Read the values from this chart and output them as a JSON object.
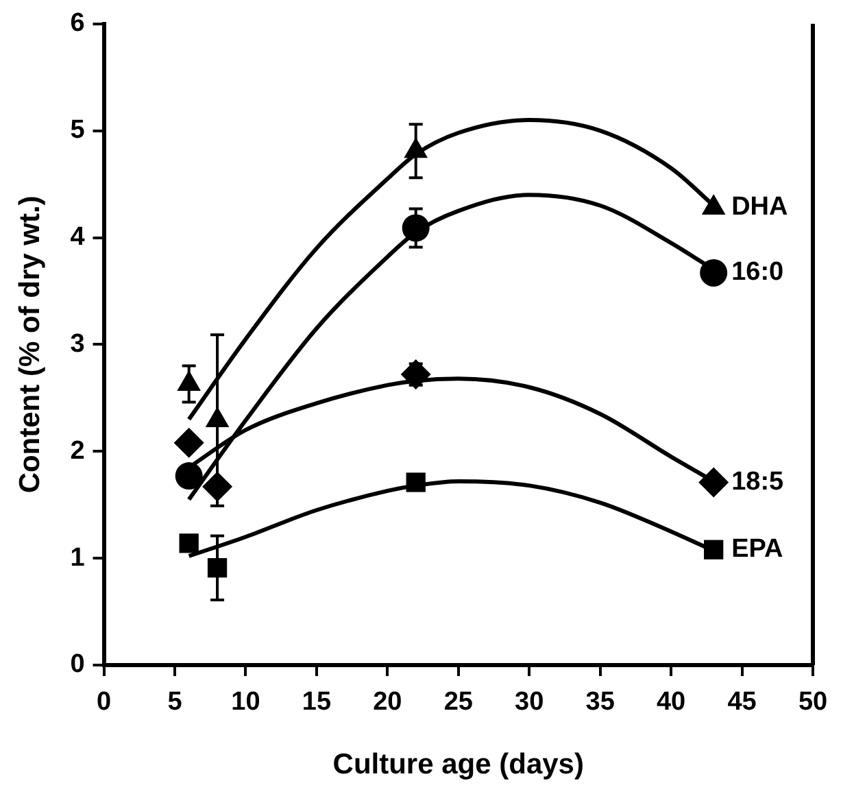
{
  "chart_data": {
    "type": "scatter",
    "xlabel": "Culture age (days)",
    "ylabel": "Content (% of dry wt.)",
    "xlim": [
      0,
      50
    ],
    "xticks": [
      0,
      5,
      10,
      15,
      20,
      25,
      30,
      35,
      40,
      45,
      50
    ],
    "ylim": [
      0,
      6
    ],
    "yticks": [
      0,
      1,
      2,
      3,
      4,
      5,
      6
    ],
    "grid": false,
    "legend": false,
    "series": [
      {
        "name": "DHA",
        "color": "#000000",
        "marker": "triangle",
        "x": [
          6,
          8,
          22,
          43
        ],
        "values": [
          2.63,
          2.29,
          4.81,
          4.28
        ],
        "errors": [
          0.17,
          0.8,
          0.25,
          null
        ]
      },
      {
        "name": "16:0",
        "color": "#000000",
        "marker": "circle",
        "x": [
          6,
          22,
          43
        ],
        "values": [
          1.77,
          4.09,
          3.67
        ],
        "errors": [
          null,
          0.18,
          null
        ]
      },
      {
        "name": "18:5",
        "color": "#000000",
        "marker": "diamond",
        "x": [
          6,
          8,
          22,
          43
        ],
        "values": [
          2.08,
          1.67,
          2.72,
          1.71
        ],
        "errors": [
          null,
          null,
          0.1,
          null
        ]
      },
      {
        "name": "EPA",
        "color": "#000000",
        "marker": "square",
        "x": [
          6,
          8,
          22,
          43
        ],
        "values": [
          1.14,
          0.91,
          1.71,
          1.08
        ],
        "errors": [
          null,
          0.3,
          null,
          null
        ]
      },
      {
        "type": "line",
        "color": "#000000",
        "marker": "none",
        "x": [
          6,
          10,
          15,
          20,
          22,
          25,
          30,
          35,
          40,
          43
        ],
        "values": [
          2.3,
          3.05,
          3.9,
          4.55,
          4.78,
          4.98,
          5.1,
          5.0,
          4.65,
          4.3
        ]
      },
      {
        "type": "line",
        "color": "#000000",
        "marker": "none",
        "x": [
          6,
          10,
          15,
          20,
          22,
          25,
          30,
          35,
          40,
          43
        ],
        "values": [
          1.55,
          2.29,
          3.15,
          3.82,
          4.05,
          4.25,
          4.4,
          4.3,
          3.95,
          3.7
        ]
      },
      {
        "type": "line",
        "color": "#000000",
        "marker": "none",
        "x": [
          6,
          10,
          15,
          20,
          22,
          25,
          30,
          35,
          40,
          43
        ],
        "values": [
          1.85,
          2.2,
          2.45,
          2.62,
          2.66,
          2.68,
          2.6,
          2.35,
          1.95,
          1.72
        ]
      },
      {
        "type": "line",
        "color": "#000000",
        "marker": "none",
        "x": [
          6,
          10,
          15,
          20,
          22,
          25,
          30,
          35,
          40,
          43
        ],
        "values": [
          1.02,
          1.2,
          1.45,
          1.63,
          1.68,
          1.72,
          1.68,
          1.52,
          1.25,
          1.07
        ]
      }
    ]
  }
}
